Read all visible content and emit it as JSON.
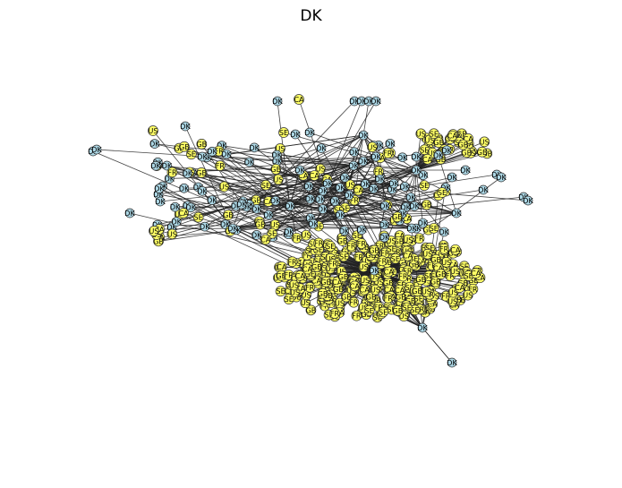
{
  "figure": {
    "title": "DK"
  },
  "graph": {
    "colors": {
      "node_blue": "#add8e6",
      "node_yellow": "#ffff66",
      "edge": "#222222",
      "stroke": "#333333"
    },
    "node_labels": {
      "dk": "DK",
      "us": "US",
      "gb": "GB",
      "se": "SE",
      "fr": "FR",
      "ca": "CA"
    }
  }
}
